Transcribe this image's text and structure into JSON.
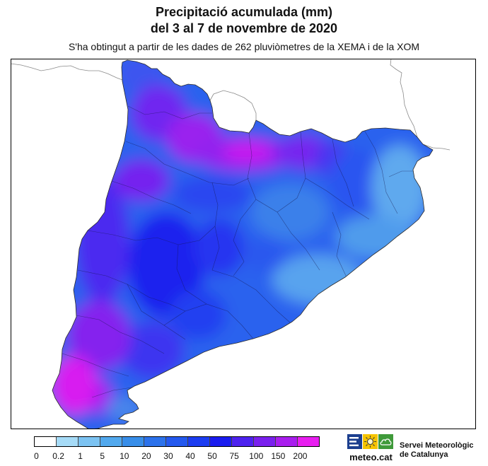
{
  "title": {
    "line1": "Precipitació acumulada (mm)",
    "line2": "del 3 al 7 de novembre de 2020"
  },
  "subtitle": "S'ha obtingut a partir de les dades de 262 pluviòmetres de la XEMA i de la XOM",
  "legend": {
    "bins": [
      {
        "label": "0",
        "color": "#ffffff"
      },
      {
        "label": "0.2",
        "color": "#a6dbf7"
      },
      {
        "label": "1",
        "color": "#7cc3f2"
      },
      {
        "label": "5",
        "color": "#52a9ee"
      },
      {
        "label": "10",
        "color": "#388ee9"
      },
      {
        "label": "20",
        "color": "#2c72eb"
      },
      {
        "label": "30",
        "color": "#2459ee"
      },
      {
        "label": "40",
        "color": "#1c3df1"
      },
      {
        "label": "50",
        "color": "#1a1cef"
      },
      {
        "label": "75",
        "color": "#4d22ef"
      },
      {
        "label": "100",
        "color": "#7a20ee"
      },
      {
        "label": "150",
        "color": "#a91eee"
      },
      {
        "label": "200",
        "color": "#e81ef0"
      }
    ]
  },
  "logo": {
    "brand": "meteo.cat",
    "org_line1": "Servei Meteorològic",
    "org_line2": "de Catalunya",
    "icons": [
      "bars-icon",
      "sun-icon",
      "cloud-icon"
    ],
    "icon_colors": [
      "#1c3f8f",
      "#f6c400",
      "#3f9a3a"
    ]
  }
}
